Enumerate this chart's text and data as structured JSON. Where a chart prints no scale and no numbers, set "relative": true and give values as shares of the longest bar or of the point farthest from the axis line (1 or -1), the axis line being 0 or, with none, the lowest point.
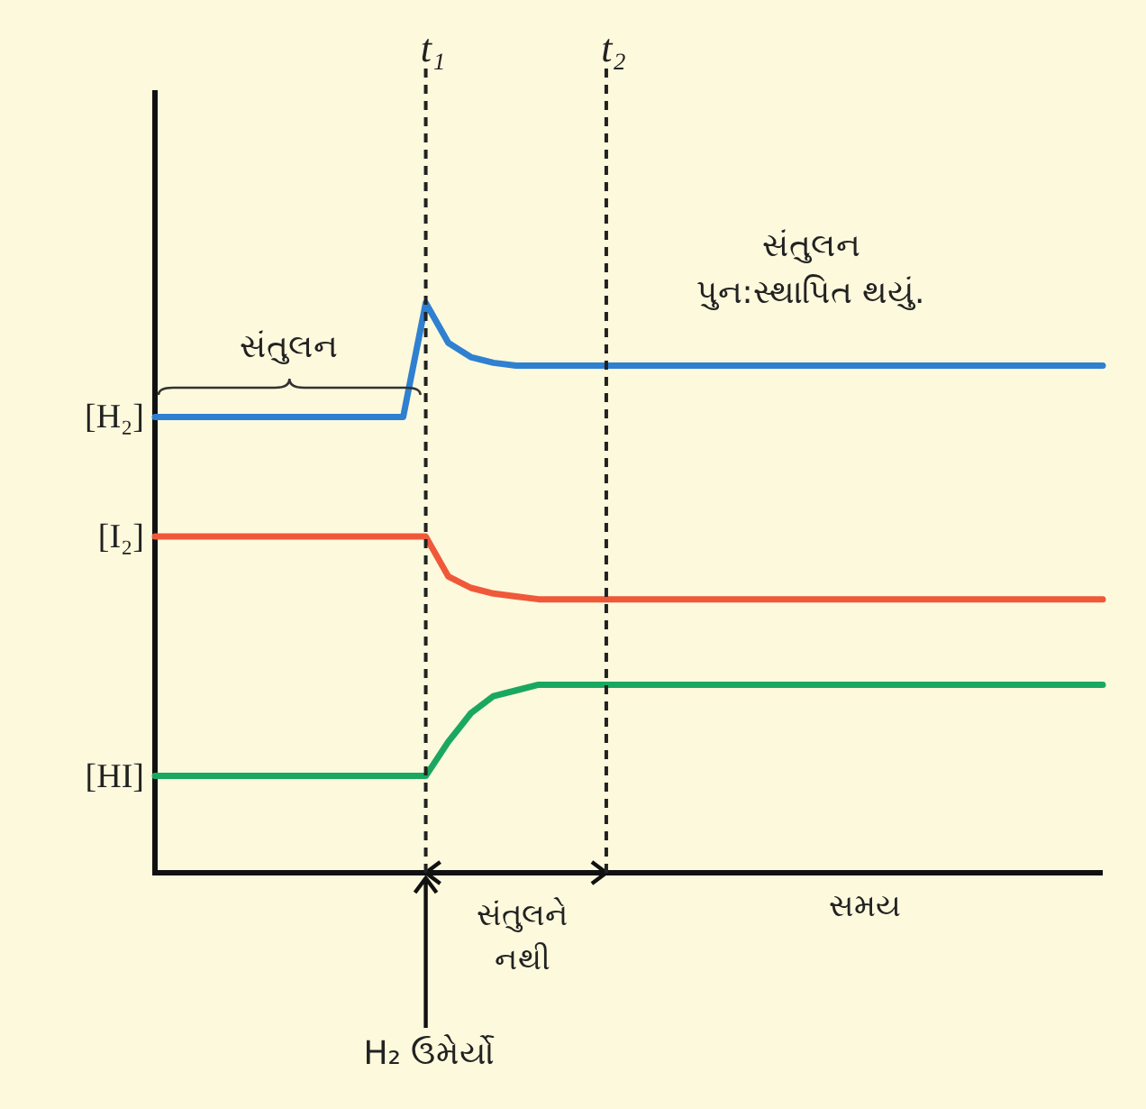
{
  "chart_data": {
    "type": "line",
    "relative": true,
    "xlabel": "સમય",
    "categories": [
      null,
      null,
      null,
      null,
      null,
      null,
      null,
      null,
      null,
      null,
      null,
      null,
      null,
      null,
      null,
      null,
      null,
      null,
      null,
      null,
      null,
      null,
      null,
      null,
      null,
      null,
      null,
      null,
      null,
      null,
      null,
      null,
      null,
      null,
      null,
      null,
      null,
      null,
      null,
      null,
      null,
      null,
      null
    ],
    "series": [
      {
        "color": "#2f80d0",
        "values": [
          0.8,
          0.8,
          0.8,
          0.8,
          0.8,
          0.8,
          0.8,
          0.8,
          0.8,
          0.8,
          0.8,
          0.8,
          1.0,
          0.93,
          0.905,
          0.895,
          0.89,
          0.89,
          0.89,
          0.89,
          0.89,
          0.89,
          0.89,
          0.89,
          0.89,
          0.89,
          0.89,
          0.89,
          0.89,
          0.89,
          0.89,
          0.89,
          0.89,
          0.89,
          0.89,
          0.89,
          0.89,
          0.89,
          0.89,
          0.89,
          0.89,
          0.89,
          0.89
        ]
      },
      {
        "color": "#f0583a",
        "values": [
          0.59,
          0.59,
          0.59,
          0.59,
          0.59,
          0.59,
          0.59,
          0.59,
          0.59,
          0.59,
          0.59,
          0.59,
          0.59,
          0.52,
          0.5,
          0.49,
          0.485,
          0.48,
          0.48,
          0.48,
          0.48,
          0.48,
          0.48,
          0.48,
          0.48,
          0.48,
          0.48,
          0.48,
          0.48,
          0.48,
          0.48,
          0.48,
          0.48,
          0.48,
          0.48,
          0.48,
          0.48,
          0.48,
          0.48,
          0.48,
          0.48,
          0.48,
          0.48
        ]
      },
      {
        "color": "#1aa860",
        "values": [
          0.17,
          0.17,
          0.17,
          0.17,
          0.17,
          0.17,
          0.17,
          0.17,
          0.17,
          0.17,
          0.17,
          0.17,
          0.17,
          0.23,
          0.28,
          0.31,
          0.32,
          0.33,
          0.33,
          0.33,
          0.33,
          0.33,
          0.33,
          0.33,
          0.33,
          0.33,
          0.33,
          0.33,
          0.33,
          0.33,
          0.33,
          0.33,
          0.33,
          0.33,
          0.33,
          0.33,
          0.33,
          0.33,
          0.33,
          0.33,
          0.33,
          0.33,
          0.33
        ]
      }
    ],
    "annotations": [
      "[H₂]",
      "[I₂]",
      "[HI]",
      "સંતુલન",
      "સંતુલન\nપુન:સ્થાપિત થયું.",
      "સંતુલને\nનથી",
      "H₂ ઉમેર્યો",
      "t₁",
      "t₂"
    ]
  }
}
